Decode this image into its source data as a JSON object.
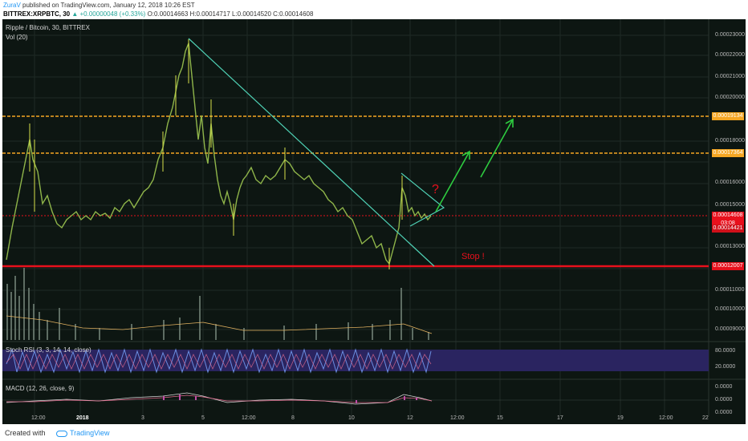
{
  "header": {
    "user": "ZuraV",
    "published": "published on TradingView.com, January 12, 2018 10:26 EST",
    "symbol": "BITTREX:XRPBTC, 30",
    "change": "▲ +0.00000048 (+0.33%)",
    "ohlc": "O:0.00014663 H:0.00014717 L:0.00014520 C:0.00014608"
  },
  "chart": {
    "title": "Ripple / Bitcoin, 30, BITTREX",
    "vol_label": "Vol (20)",
    "stoch_label": "Stoch RSI (3, 3, 14, 14, close)",
    "macd_label": "MACD (12, 26, close, 9)",
    "stop_text": "Stop !",
    "question_text": "?",
    "price_axis": [
      "0.00023000",
      "0.00022000",
      "0.00021000",
      "0.00020000",
      "0.00018000",
      "0.00016000",
      "0.00015000",
      "0.00013000",
      "0.00011000",
      "0.00010000",
      "0.00009000"
    ],
    "tags": {
      "orange1": "0.00019134",
      "orange2": "0.00017364",
      "current": "0.00014608",
      "time": "03:08",
      "red_small": "0.00014421",
      "red_stop": "0.00012007"
    },
    "stoch_axis": [
      "80.0000",
      "20.0000"
    ],
    "macd_axis": [
      "0.0000",
      "0.0000",
      "0.0000"
    ],
    "time_axis": [
      "12:00",
      "2018",
      "3",
      "5",
      "12:00",
      "8",
      "10",
      "12",
      "12:00",
      "15",
      "17",
      "19",
      "12:00",
      "22"
    ],
    "colors": {
      "background": "#0d1612",
      "orange_line": "#f5a623",
      "red_line": "#e8101c",
      "trend_line": "#4fd1b5",
      "arrow": "#2ecc40",
      "stoch_band": "#2a2460"
    }
  },
  "footer": {
    "created": "Created with",
    "brand": "TradingView"
  }
}
